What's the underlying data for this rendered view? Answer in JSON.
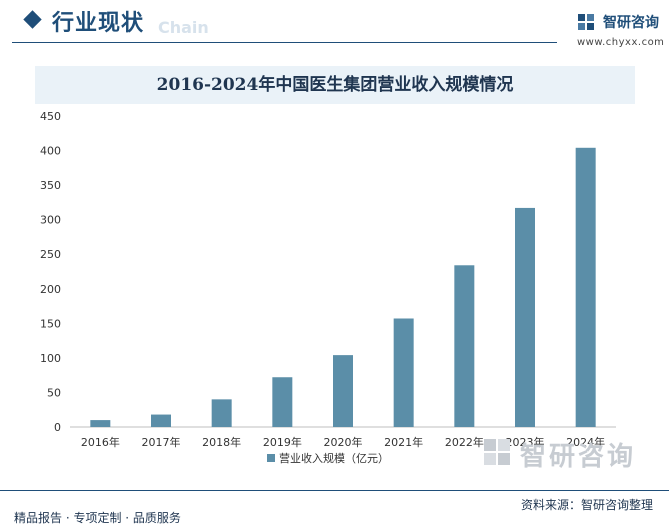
{
  "header": {
    "section_title": "行业现状",
    "ghost_text": "Chain",
    "brand_name": "智研咨询",
    "brand_url": "www.chyxx.com"
  },
  "chart_data": {
    "type": "bar",
    "title": "2016-2024年中国医生集团营业收入规模情况",
    "categories": [
      "2016年",
      "2017年",
      "2018年",
      "2019年",
      "2020年",
      "2021年",
      "2022年",
      "2023年",
      "2024年"
    ],
    "series": [
      {
        "name": "营业收入规模（亿元）",
        "values": [
          10,
          18,
          40,
          72,
          104,
          157,
          234,
          317,
          404
        ]
      }
    ],
    "yticks": [
      0,
      50,
      100,
      150,
      200,
      250,
      300,
      350,
      400,
      450
    ],
    "ylim": [
      0,
      450
    ],
    "grid": false,
    "legend": "bottom-center",
    "bar_color": "#5b8ea8"
  },
  "footer": {
    "left": "精品报告 · 专项定制 · 品质服务",
    "right": "资料来源：智研咨询整理",
    "logo_text": "智研咨询"
  },
  "colors": {
    "accent": "#1f4e79",
    "title_bg": "#eaf2f8"
  }
}
